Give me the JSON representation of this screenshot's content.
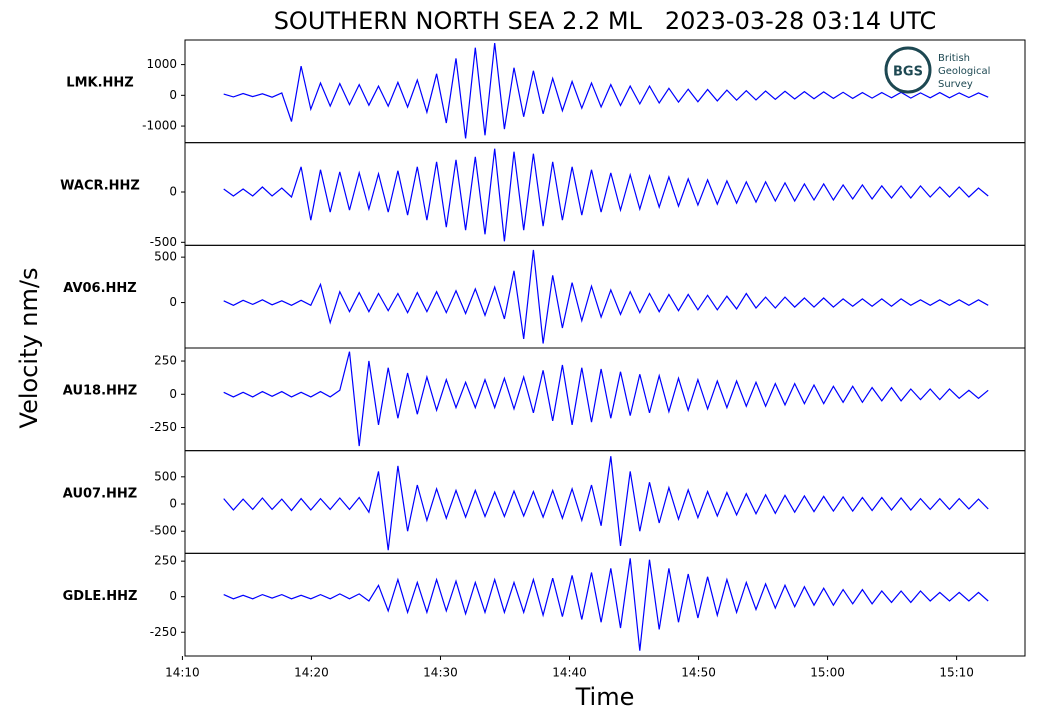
{
  "figure": {
    "title": "SOUTHERN NORTH SEA 2.2 ML   2023-03-28 03:14 UTC",
    "xlabel": "Time",
    "ylabel": "Velocity nm/s"
  },
  "logo": {
    "abbr": "BGS",
    "lines": [
      "British",
      "Geological",
      "Survey"
    ]
  },
  "chart_data": [
    {
      "type": "line",
      "ylabel": "LMK.HHZ",
      "color": "#0000ff",
      "xlim": [
        10.2,
        75.3
      ],
      "ylim": [
        -1540,
        1800
      ],
      "yticks": [
        -1000,
        0,
        1000
      ],
      "x": [
        13.2,
        13.95,
        14.7,
        15.45,
        16.2,
        16.95,
        17.7,
        18.45,
        19.2,
        19.95,
        20.7,
        21.45,
        22.2,
        22.95,
        23.7,
        24.45,
        25.2,
        25.95,
        26.7,
        27.45,
        28.2,
        28.95,
        29.7,
        30.45,
        31.2,
        31.95,
        32.7,
        33.45,
        34.2,
        34.95,
        35.7,
        36.45,
        37.2,
        37.95,
        38.7,
        39.45,
        40.2,
        40.95,
        41.7,
        42.45,
        43.2,
        43.95,
        44.7,
        45.45,
        46.2,
        46.95,
        47.7,
        48.45,
        49.2,
        49.95,
        50.7,
        51.45,
        52.2,
        52.95,
        53.7,
        54.45,
        55.2,
        55.95,
        56.7,
        57.45,
        58.2,
        58.95,
        59.7,
        60.45,
        61.2,
        61.95,
        62.7,
        63.45,
        64.2,
        64.95,
        65.7,
        66.45,
        67.2,
        67.95,
        68.7,
        69.45,
        70.2,
        70.95,
        71.7,
        72.45
      ],
      "values": [
        40,
        -50,
        60,
        -40,
        50,
        -60,
        80,
        -850,
        950,
        -450,
        400,
        -350,
        380,
        -300,
        350,
        -320,
        300,
        -350,
        420,
        -380,
        500,
        -550,
        700,
        -900,
        1200,
        -1400,
        1550,
        -1300,
        1700,
        -1100,
        900,
        -700,
        800,
        -600,
        550,
        -500,
        450,
        -420,
        400,
        -380,
        350,
        -330,
        300,
        -280,
        300,
        -250,
        230,
        -220,
        200,
        -210,
        190,
        -180,
        170,
        -160,
        150,
        -150,
        140,
        -130,
        130,
        -120,
        120,
        -110,
        110,
        -100,
        100,
        -100,
        90,
        -90,
        90,
        -80,
        100,
        -90,
        80,
        -80,
        90,
        -80,
        80,
        -70,
        80,
        -60
      ]
    },
    {
      "type": "line",
      "ylabel": "WACR.HHZ",
      "color": "#0000ff",
      "xlim": [
        10.2,
        75.3
      ],
      "ylim": [
        -530,
        490
      ],
      "yticks": [
        -500,
        0
      ],
      "x": [
        13.2,
        13.95,
        14.7,
        15.45,
        16.2,
        16.95,
        17.7,
        18.45,
        19.2,
        19.95,
        20.7,
        21.45,
        22.2,
        22.95,
        23.7,
        24.45,
        25.2,
        25.95,
        26.7,
        27.45,
        28.2,
        28.95,
        29.7,
        30.45,
        31.2,
        31.95,
        32.7,
        33.45,
        34.2,
        34.95,
        35.7,
        36.45,
        37.2,
        37.95,
        38.7,
        39.45,
        40.2,
        40.95,
        41.7,
        42.45,
        43.2,
        43.95,
        44.7,
        45.45,
        46.2,
        46.95,
        47.7,
        48.45,
        49.2,
        49.95,
        50.7,
        51.45,
        52.2,
        52.95,
        53.7,
        54.45,
        55.2,
        55.95,
        56.7,
        57.45,
        58.2,
        58.95,
        59.7,
        60.45,
        61.2,
        61.95,
        62.7,
        63.45,
        64.2,
        64.95,
        65.7,
        66.45,
        67.2,
        67.95,
        68.7,
        69.45,
        70.2,
        70.95,
        71.7,
        72.45
      ],
      "values": [
        30,
        -40,
        30,
        -40,
        50,
        -40,
        40,
        -50,
        250,
        -280,
        220,
        -200,
        200,
        -180,
        190,
        -170,
        180,
        -200,
        210,
        -230,
        250,
        -280,
        300,
        -350,
        320,
        -380,
        350,
        -420,
        430,
        -490,
        400,
        -380,
        380,
        -340,
        300,
        -280,
        250,
        -230,
        220,
        -200,
        190,
        -180,
        170,
        -170,
        160,
        -150,
        150,
        -140,
        130,
        -130,
        120,
        -120,
        110,
        -110,
        100,
        -100,
        100,
        -90,
        90,
        -90,
        80,
        -80,
        80,
        -80,
        70,
        -70,
        70,
        -70,
        60,
        -60,
        60,
        -60,
        60,
        -50,
        50,
        -50,
        50,
        -50,
        40,
        -40
      ]
    },
    {
      "type": "line",
      "ylabel": "AV06.HHZ",
      "color": "#0000ff",
      "xlim": [
        10.2,
        75.3
      ],
      "ylim": [
        -500,
        630
      ],
      "yticks": [
        0,
        500
      ],
      "x": [
        13.2,
        13.95,
        14.7,
        15.45,
        16.2,
        16.95,
        17.7,
        18.45,
        19.2,
        19.95,
        20.7,
        21.45,
        22.2,
        22.95,
        23.7,
        24.45,
        25.2,
        25.95,
        26.7,
        27.45,
        28.2,
        28.95,
        29.7,
        30.45,
        31.2,
        31.95,
        32.7,
        33.45,
        34.2,
        34.95,
        35.7,
        36.45,
        37.2,
        37.95,
        38.7,
        39.45,
        40.2,
        40.95,
        41.7,
        42.45,
        43.2,
        43.95,
        44.7,
        45.45,
        46.2,
        46.95,
        47.7,
        48.45,
        49.2,
        49.95,
        50.7,
        51.45,
        52.2,
        52.95,
        53.7,
        54.45,
        55.2,
        55.95,
        56.7,
        57.45,
        58.2,
        58.95,
        59.7,
        60.45,
        61.2,
        61.95,
        62.7,
        63.45,
        64.2,
        64.95,
        65.7,
        66.45,
        67.2,
        67.95,
        68.7,
        69.45,
        70.2,
        70.95,
        71.7,
        72.45
      ],
      "values": [
        20,
        -30,
        25,
        -20,
        30,
        -25,
        20,
        -30,
        25,
        -30,
        200,
        -220,
        120,
        -100,
        110,
        -100,
        100,
        -90,
        100,
        -110,
        110,
        -100,
        120,
        -110,
        130,
        -120,
        150,
        -140,
        170,
        -180,
        350,
        -400,
        580,
        -450,
        300,
        -280,
        220,
        -200,
        180,
        -160,
        140,
        -130,
        120,
        -110,
        100,
        -100,
        90,
        -90,
        90,
        -80,
        80,
        -80,
        70,
        -70,
        100,
        -60,
        60,
        -60,
        60,
        -50,
        50,
        -50,
        50,
        -50,
        40,
        -40,
        40,
        -40,
        40,
        -40,
        40,
        -30,
        30,
        -30,
        30,
        -30,
        30,
        -30,
        30,
        -30
      ]
    },
    {
      "type": "line",
      "ylabel": "AU18.HHZ",
      "color": "#0000ff",
      "xlim": [
        10.2,
        75.3
      ],
      "ylim": [
        -424,
        348
      ],
      "yticks": [
        -250,
        0,
        250
      ],
      "x": [
        13.2,
        13.95,
        14.7,
        15.45,
        16.2,
        16.95,
        17.7,
        18.45,
        19.2,
        19.95,
        20.7,
        21.45,
        22.2,
        22.95,
        23.7,
        24.45,
        25.2,
        25.95,
        26.7,
        27.45,
        28.2,
        28.95,
        29.7,
        30.45,
        31.2,
        31.95,
        32.7,
        33.45,
        34.2,
        34.95,
        35.7,
        36.45,
        37.2,
        37.95,
        38.7,
        39.45,
        40.2,
        40.95,
        41.7,
        42.45,
        43.2,
        43.95,
        44.7,
        45.45,
        46.2,
        46.95,
        47.7,
        48.45,
        49.2,
        49.95,
        50.7,
        51.45,
        52.2,
        52.95,
        53.7,
        54.45,
        55.2,
        55.95,
        56.7,
        57.45,
        58.2,
        58.95,
        59.7,
        60.45,
        61.2,
        61.95,
        62.7,
        63.45,
        64.2,
        64.95,
        65.7,
        66.45,
        67.2,
        67.95,
        68.7,
        69.45,
        70.2,
        70.95,
        71.7,
        72.45
      ],
      "values": [
        15,
        -20,
        15,
        -20,
        20,
        -15,
        20,
        -20,
        15,
        -20,
        20,
        -20,
        30,
        320,
        -390,
        250,
        -230,
        200,
        -180,
        160,
        -150,
        130,
        -120,
        110,
        -100,
        90,
        -100,
        110,
        -100,
        120,
        -110,
        130,
        -140,
        180,
        -200,
        220,
        -230,
        200,
        -210,
        190,
        -180,
        170,
        -160,
        150,
        -140,
        140,
        -130,
        120,
        -120,
        110,
        -110,
        100,
        -100,
        100,
        -90,
        90,
        -90,
        80,
        -80,
        80,
        -70,
        70,
        -70,
        60,
        -60,
        60,
        -60,
        50,
        -50,
        50,
        -50,
        40,
        -40,
        40,
        -40,
        40,
        -30,
        30,
        -30,
        30
      ]
    },
    {
      "type": "line",
      "ylabel": "AU07.HHZ",
      "color": "#0000ff",
      "xlim": [
        10.2,
        75.3
      ],
      "ylim": [
        -907,
        981
      ],
      "yticks": [
        -500,
        0,
        500
      ],
      "x": [
        13.2,
        13.95,
        14.7,
        15.45,
        16.2,
        16.95,
        17.7,
        18.45,
        19.2,
        19.95,
        20.7,
        21.45,
        22.2,
        22.95,
        23.7,
        24.45,
        25.2,
        25.95,
        26.7,
        27.45,
        28.2,
        28.95,
        29.7,
        30.45,
        31.2,
        31.95,
        32.7,
        33.45,
        34.2,
        34.95,
        35.7,
        36.45,
        37.2,
        37.95,
        38.7,
        39.45,
        40.2,
        40.95,
        41.7,
        42.45,
        43.2,
        43.95,
        44.7,
        45.45,
        46.2,
        46.95,
        47.7,
        48.45,
        49.2,
        49.95,
        50.7,
        51.45,
        52.2,
        52.95,
        53.7,
        54.45,
        55.2,
        55.95,
        56.7,
        57.45,
        58.2,
        58.95,
        59.7,
        60.45,
        61.2,
        61.95,
        62.7,
        63.45,
        64.2,
        64.95,
        65.7,
        66.45,
        67.2,
        67.95,
        68.7,
        69.45,
        70.2,
        70.95,
        71.7,
        72.45
      ],
      "values": [
        100,
        -110,
        90,
        -100,
        110,
        -100,
        90,
        -120,
        100,
        -110,
        100,
        -100,
        110,
        -100,
        120,
        -150,
        600,
        -850,
        700,
        -500,
        350,
        -300,
        280,
        -260,
        250,
        -240,
        250,
        -230,
        220,
        -230,
        240,
        -220,
        230,
        -240,
        250,
        -260,
        280,
        -300,
        350,
        -400,
        880,
        -770,
        600,
        -500,
        400,
        -350,
        300,
        -280,
        260,
        -250,
        230,
        -220,
        210,
        -200,
        190,
        -180,
        170,
        -170,
        160,
        -150,
        150,
        -140,
        140,
        -130,
        130,
        -130,
        120,
        -120,
        120,
        -110,
        110,
        -110,
        100,
        -100,
        100,
        -100,
        100,
        -90,
        90,
        -90
      ]
    },
    {
      "type": "line",
      "ylabel": "GDLE.HHZ",
      "color": "#0000ff",
      "xlim": [
        10.2,
        75.3
      ],
      "ylim": [
        -417,
        305
      ],
      "yticks": [
        -250,
        0,
        250
      ],
      "xticks": [
        {
          "value": 10,
          "label": "14:10"
        },
        {
          "value": 20,
          "label": "14:20"
        },
        {
          "value": 30,
          "label": "14:30"
        },
        {
          "value": 40,
          "label": "14:40"
        },
        {
          "value": 50,
          "label": "14:50"
        },
        {
          "value": 60,
          "label": "15:00"
        },
        {
          "value": 70,
          "label": "15:10"
        }
      ],
      "x": [
        13.2,
        13.95,
        14.7,
        15.45,
        16.2,
        16.95,
        17.7,
        18.45,
        19.2,
        19.95,
        20.7,
        21.45,
        22.2,
        22.95,
        23.7,
        24.45,
        25.2,
        25.95,
        26.7,
        27.45,
        28.2,
        28.95,
        29.7,
        30.45,
        31.2,
        31.95,
        32.7,
        33.45,
        34.2,
        34.95,
        35.7,
        36.45,
        37.2,
        37.95,
        38.7,
        39.45,
        40.2,
        40.95,
        41.7,
        42.45,
        43.2,
        43.95,
        44.7,
        45.45,
        46.2,
        46.95,
        47.7,
        48.45,
        49.2,
        49.95,
        50.7,
        51.45,
        52.2,
        52.95,
        53.7,
        54.45,
        55.2,
        55.95,
        56.7,
        57.45,
        58.2,
        58.95,
        59.7,
        60.45,
        61.2,
        61.95,
        62.7,
        63.45,
        64.2,
        64.95,
        65.7,
        66.45,
        67.2,
        67.95,
        68.7,
        69.45,
        70.2,
        70.95,
        71.7,
        72.45
      ],
      "values": [
        15,
        -15,
        10,
        -15,
        15,
        -10,
        15,
        -15,
        10,
        -15,
        15,
        -15,
        20,
        -15,
        20,
        -30,
        80,
        -100,
        120,
        -110,
        100,
        -110,
        120,
        -100,
        110,
        -120,
        100,
        -110,
        120,
        -110,
        100,
        -110,
        120,
        -130,
        130,
        -140,
        150,
        -160,
        170,
        -180,
        200,
        -220,
        270,
        -380,
        260,
        -230,
        200,
        -180,
        160,
        -150,
        140,
        -130,
        120,
        -110,
        100,
        -90,
        90,
        -80,
        80,
        -70,
        70,
        -60,
        60,
        -60,
        50,
        -50,
        50,
        -50,
        40,
        -40,
        40,
        -40,
        40,
        -30,
        30,
        -30,
        30,
        -30,
        30,
        -30
      ]
    }
  ]
}
